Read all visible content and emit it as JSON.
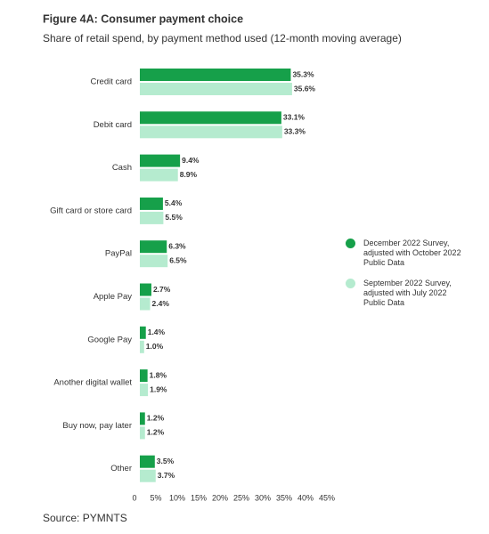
{
  "chart_data": {
    "type": "hbar",
    "title": "Figure 4A: Consumer payment choice",
    "subtitle": "Share of retail spend, by payment method used (12-month moving average)",
    "source": "Source: PYMNTS",
    "categories": [
      "Credit card",
      "Debit card",
      "Cash",
      "Gift card or store card",
      "PayPal",
      "Apple Pay",
      "Google Pay",
      "Another digital wallet",
      "Buy now, pay later",
      "Other"
    ],
    "series": [
      {
        "name": "December 2022 Survey, adjusted with October 2022 Public Data",
        "color": "#16a04a",
        "values": [
          35.3,
          33.1,
          9.4,
          5.4,
          6.3,
          2.7,
          1.4,
          1.8,
          1.2,
          3.5
        ],
        "value_labels": [
          "35.3%",
          "33.1%",
          "9.4%",
          "5.4%",
          "6.3%",
          "2.7%",
          "1.4%",
          "1.8%",
          "1.2%",
          "3.5%"
        ]
      },
      {
        "name": "September 2022 Survey, adjusted with July 2022 Public Data",
        "color": "#b5ebcf",
        "values": [
          35.6,
          33.3,
          8.9,
          5.5,
          6.5,
          2.4,
          1.0,
          1.9,
          1.2,
          3.7
        ],
        "value_labels": [
          "35.6%",
          "33.3%",
          "8.9%",
          "5.5%",
          "6.5%",
          "2.4%",
          "1.0%",
          "1.9%",
          "1.2%",
          "3.7%"
        ]
      }
    ],
    "xlim": [
      0,
      45
    ],
    "xticks": [
      0,
      {
        "value": 5,
        "label": "5%"
      },
      {
        "value": 10,
        "label": "10%"
      },
      {
        "value": 15,
        "label": "15%"
      },
      {
        "value": 20,
        "label": "20%"
      },
      {
        "value": 25,
        "label": "25%"
      },
      {
        "value": 30,
        "label": "30%"
      },
      {
        "value": 35,
        "label": "35%"
      },
      {
        "value": 40,
        "label": "40%"
      },
      {
        "value": 45,
        "label": "45%"
      }
    ]
  }
}
